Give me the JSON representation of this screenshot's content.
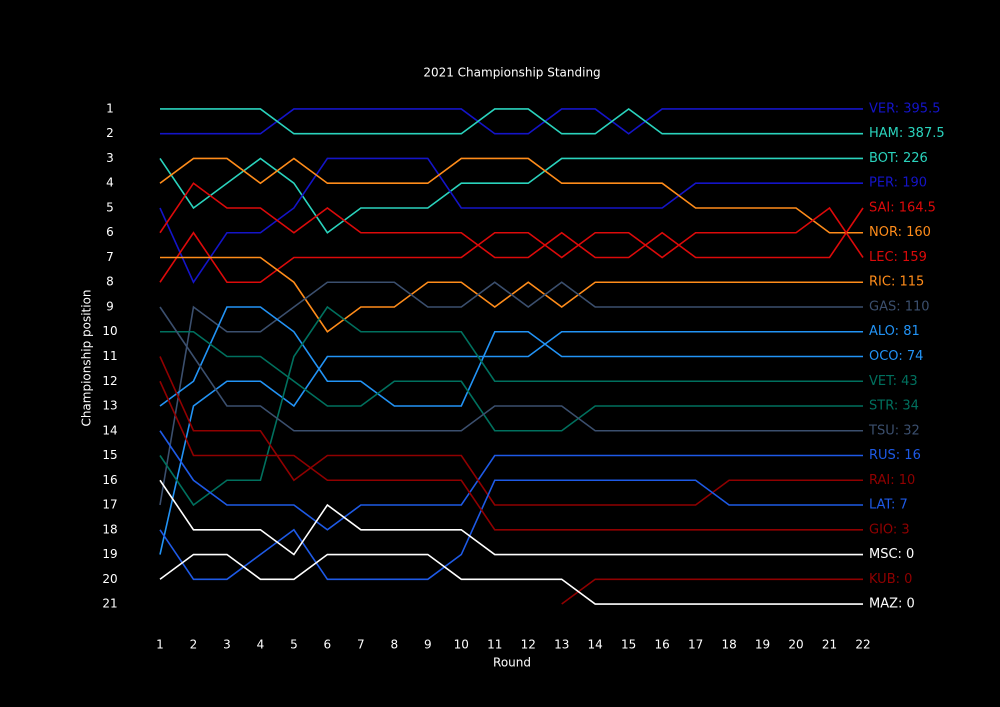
{
  "chart_data": {
    "type": "line",
    "title": "2021 Championship Standing",
    "x_label": "Round",
    "y_label": "Championship position",
    "x": [
      1,
      2,
      3,
      4,
      5,
      6,
      7,
      8,
      9,
      10,
      11,
      12,
      13,
      14,
      15,
      16,
      17,
      18,
      19,
      20,
      21,
      22
    ],
    "xlim": [
      1,
      22
    ],
    "xticks": [
      1,
      2,
      3,
      4,
      5,
      6,
      7,
      8,
      9,
      10,
      11,
      12,
      13,
      14,
      15,
      16,
      17,
      18,
      19,
      20,
      21,
      22
    ],
    "ylim": [
      21.5,
      0.5
    ],
    "yticks": [
      1,
      2,
      3,
      4,
      5,
      6,
      7,
      8,
      9,
      10,
      11,
      12,
      13,
      14,
      15,
      16,
      17,
      18,
      19,
      20,
      21
    ],
    "series": [
      {
        "name": "VER: 395.5",
        "color": "#1414c8",
        "values": [
          2,
          2,
          2,
          2,
          1,
          1,
          1,
          1,
          1,
          1,
          2,
          2,
          1,
          1,
          2,
          1,
          1,
          1,
          1,
          1,
          1,
          1
        ]
      },
      {
        "name": "HAM: 387.5",
        "color": "#2ad3bd",
        "values": [
          1,
          1,
          1,
          1,
          2,
          2,
          2,
          2,
          2,
          2,
          1,
          1,
          2,
          2,
          1,
          2,
          2,
          2,
          2,
          2,
          2,
          2
        ]
      },
      {
        "name": "BOT: 226",
        "color": "#2ad3bd",
        "values": [
          3,
          5,
          4,
          3,
          4,
          6,
          5,
          5,
          5,
          4,
          4,
          4,
          3,
          3,
          3,
          3,
          3,
          3,
          3,
          3,
          3,
          3
        ]
      },
      {
        "name": "PER: 190",
        "color": "#1414c8",
        "values": [
          5,
          8,
          6,
          6,
          5,
          3,
          3,
          3,
          3,
          5,
          5,
          5,
          5,
          5,
          5,
          5,
          4,
          4,
          4,
          4,
          4,
          4
        ]
      },
      {
        "name": "SAI: 164.5",
        "color": "#dc0a0a",
        "values": [
          6,
          4,
          5,
          5,
          6,
          5,
          6,
          6,
          6,
          6,
          7,
          7,
          6,
          7,
          7,
          6,
          7,
          7,
          7,
          7,
          7,
          5
        ]
      },
      {
        "name": "NOR: 160",
        "color": "#ff8c1a",
        "values": [
          4,
          3,
          3,
          4,
          3,
          4,
          4,
          4,
          4,
          3,
          3,
          3,
          4,
          4,
          4,
          4,
          5,
          5,
          5,
          5,
          6,
          6
        ]
      },
      {
        "name": "LEC: 159",
        "color": "#dc0a0a",
        "values": [
          8,
          6,
          8,
          8,
          7,
          7,
          7,
          7,
          7,
          7,
          6,
          6,
          7,
          6,
          6,
          7,
          6,
          6,
          6,
          6,
          5,
          7
        ]
      },
      {
        "name": "RIC: 115",
        "color": "#ff8c1a",
        "values": [
          7,
          7,
          7,
          7,
          8,
          10,
          9,
          9,
          8,
          8,
          9,
          8,
          9,
          8,
          8,
          8,
          8,
          8,
          8,
          8,
          8,
          8
        ]
      },
      {
        "name": "GAS: 110",
        "color": "#3b4f6e",
        "values": [
          17,
          9,
          10,
          10,
          9,
          8,
          8,
          8,
          9,
          9,
          8,
          9,
          8,
          9,
          9,
          9,
          9,
          9,
          9,
          9,
          9,
          9
        ]
      },
      {
        "name": "ALO: 81",
        "color": "#2293f5",
        "values": [
          19,
          13,
          12,
          12,
          13,
          11,
          11,
          11,
          11,
          11,
          11,
          11,
          10,
          10,
          10,
          10,
          10,
          10,
          10,
          10,
          10,
          10
        ]
      },
      {
        "name": "OCO: 74",
        "color": "#2293f5",
        "values": [
          13,
          12,
          9,
          9,
          10,
          12,
          12,
          13,
          13,
          13,
          10,
          10,
          11,
          11,
          11,
          11,
          11,
          11,
          11,
          11,
          11,
          11
        ]
      },
      {
        "name": "VET: 43",
        "color": "#00705e",
        "values": [
          15,
          17,
          16,
          16,
          11,
          9,
          10,
          10,
          10,
          10,
          12,
          12,
          12,
          12,
          12,
          12,
          12,
          12,
          12,
          12,
          12,
          12
        ]
      },
      {
        "name": "STR: 34",
        "color": "#00705e",
        "values": [
          10,
          10,
          11,
          11,
          12,
          13,
          13,
          12,
          12,
          12,
          14,
          14,
          14,
          13,
          13,
          13,
          13,
          13,
          13,
          13,
          13,
          13
        ]
      },
      {
        "name": "TSU: 32",
        "color": "#3b4f6e",
        "values": [
          9,
          11,
          13,
          13,
          14,
          14,
          14,
          14,
          14,
          14,
          13,
          13,
          13,
          14,
          14,
          14,
          14,
          14,
          14,
          14,
          14,
          14
        ]
      },
      {
        "name": "RUS: 16",
        "color": "#1e5ae6",
        "values": [
          14,
          16,
          17,
          17,
          17,
          18,
          17,
          17,
          17,
          17,
          15,
          15,
          15,
          15,
          15,
          15,
          15,
          15,
          15,
          15,
          15,
          15
        ]
      },
      {
        "name": "RAI: 10",
        "color": "#900000",
        "values": [
          11,
          14,
          14,
          14,
          16,
          15,
          15,
          15,
          15,
          15,
          17,
          17,
          17,
          17,
          17,
          17,
          17,
          16,
          16,
          16,
          16,
          16
        ]
      },
      {
        "name": "LAT: 7",
        "color": "#1e5ae6",
        "values": [
          18,
          20,
          20,
          19,
          18,
          20,
          20,
          20,
          20,
          19,
          16,
          16,
          16,
          16,
          16,
          16,
          16,
          17,
          17,
          17,
          17,
          17
        ]
      },
      {
        "name": "GIO: 3",
        "color": "#900000",
        "values": [
          12,
          15,
          15,
          15,
          15,
          16,
          16,
          16,
          16,
          16,
          18,
          18,
          18,
          18,
          18,
          18,
          18,
          18,
          18,
          18,
          18,
          18
        ]
      },
      {
        "name": "MSC: 0",
        "color": "#ffffff",
        "values": [
          16,
          18,
          18,
          18,
          19,
          17,
          18,
          18,
          18,
          18,
          19,
          19,
          19,
          19,
          19,
          19,
          19,
          19,
          19,
          19,
          19,
          19
        ]
      },
      {
        "name": "KUB: 0",
        "color": "#900000",
        "values": [
          null,
          null,
          null,
          null,
          null,
          null,
          null,
          null,
          null,
          null,
          null,
          null,
          21,
          20,
          20,
          20,
          20,
          20,
          20,
          20,
          20,
          20
        ]
      },
      {
        "name": "MAZ: 0",
        "color": "#ffffff",
        "values": [
          20,
          19,
          19,
          20,
          20,
          19,
          19,
          19,
          19,
          20,
          20,
          20,
          20,
          21,
          21,
          21,
          21,
          21,
          21,
          21,
          21,
          21
        ]
      }
    ]
  }
}
